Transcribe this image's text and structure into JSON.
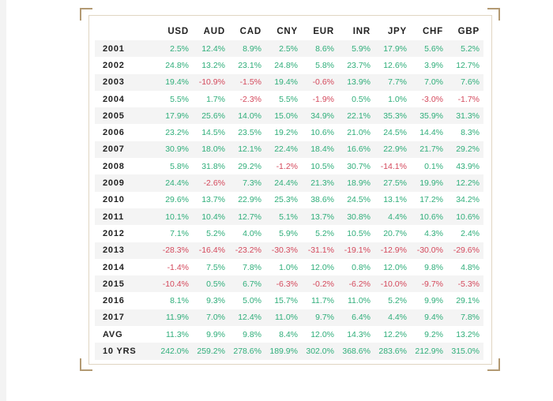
{
  "chart_data": {
    "type": "table",
    "columns": [
      "USD",
      "AUD",
      "CAD",
      "CNY",
      "EUR",
      "INR",
      "JPY",
      "CHF",
      "GBP"
    ],
    "rows": [
      {
        "label": "2001",
        "values": [
          "2.5%",
          "12.4%",
          "8.9%",
          "2.5%",
          "8.6%",
          "5.9%",
          "17.9%",
          "5.6%",
          "5.2%"
        ]
      },
      {
        "label": "2002",
        "values": [
          "24.8%",
          "13.2%",
          "23.1%",
          "24.8%",
          "5.8%",
          "23.7%",
          "12.6%",
          "3.9%",
          "12.7%"
        ]
      },
      {
        "label": "2003",
        "values": [
          "19.4%",
          "-10.9%",
          "-1.5%",
          "19.4%",
          "-0.6%",
          "13.9%",
          "7.7%",
          "7.0%",
          "7.6%"
        ]
      },
      {
        "label": "2004",
        "values": [
          "5.5%",
          "1.7%",
          "-2.3%",
          "5.5%",
          "-1.9%",
          "0.5%",
          "1.0%",
          "-3.0%",
          "-1.7%"
        ]
      },
      {
        "label": "2005",
        "values": [
          "17.9%",
          "25.6%",
          "14.0%",
          "15.0%",
          "34.9%",
          "22.1%",
          "35.3%",
          "35.9%",
          "31.3%"
        ]
      },
      {
        "label": "2006",
        "values": [
          "23.2%",
          "14.5%",
          "23.5%",
          "19.2%",
          "10.6%",
          "21.0%",
          "24.5%",
          "14.4%",
          "8.3%"
        ]
      },
      {
        "label": "2007",
        "values": [
          "30.9%",
          "18.0%",
          "12.1%",
          "22.4%",
          "18.4%",
          "16.6%",
          "22.9%",
          "21.7%",
          "29.2%"
        ]
      },
      {
        "label": "2008",
        "values": [
          "5.8%",
          "31.8%",
          "29.2%",
          "-1.2%",
          "10.5%",
          "30.7%",
          "-14.1%",
          "0.1%",
          "43.9%"
        ]
      },
      {
        "label": "2009",
        "values": [
          "24.4%",
          "-2.6%",
          "7.3%",
          "24.4%",
          "21.3%",
          "18.9%",
          "27.5%",
          "19.9%",
          "12.2%"
        ]
      },
      {
        "label": "2010",
        "values": [
          "29.6%",
          "13.7%",
          "22.9%",
          "25.3%",
          "38.6%",
          "24.5%",
          "13.1%",
          "17.2%",
          "34.2%"
        ]
      },
      {
        "label": "2011",
        "values": [
          "10.1%",
          "10.4%",
          "12.7%",
          "5.1%",
          "13.7%",
          "30.8%",
          "4.4%",
          "10.6%",
          "10.6%"
        ]
      },
      {
        "label": "2012",
        "values": [
          "7.1%",
          "5.2%",
          "4.0%",
          "5.9%",
          "5.2%",
          "10.5%",
          "20.7%",
          "4.3%",
          "2.4%"
        ]
      },
      {
        "label": "2013",
        "values": [
          "-28.3%",
          "-16.4%",
          "-23.2%",
          "-30.3%",
          "-31.1%",
          "-19.1%",
          "-12.9%",
          "-30.0%",
          "-29.6%"
        ]
      },
      {
        "label": "2014",
        "values": [
          "-1.4%",
          "7.5%",
          "7.8%",
          "1.0%",
          "12.0%",
          "0.8%",
          "12.0%",
          "9.8%",
          "4.8%"
        ]
      },
      {
        "label": "2015",
        "values": [
          "-10.4%",
          "0.5%",
          "6.7%",
          "-6.3%",
          "-0.2%",
          "-6.2%",
          "-10.0%",
          "-9.7%",
          "-5.3%"
        ]
      },
      {
        "label": "2016",
        "values": [
          "8.1%",
          "9.3%",
          "5.0%",
          "15.7%",
          "11.7%",
          "11.0%",
          "5.2%",
          "9.9%",
          "29.1%"
        ]
      },
      {
        "label": "2017",
        "values": [
          "11.9%",
          "7.0%",
          "12.4%",
          "11.0%",
          "9.7%",
          "6.4%",
          "4.4%",
          "9.4%",
          "7.8%"
        ]
      },
      {
        "label": "AVG",
        "values": [
          "11.3%",
          "9.9%",
          "9.8%",
          "8.4%",
          "12.0%",
          "14.3%",
          "12.2%",
          "9.2%",
          "13.2%"
        ]
      },
      {
        "label": "10 YRS",
        "values": [
          "242.0%",
          "259.2%",
          "278.6%",
          "189.9%",
          "302.0%",
          "368.6%",
          "283.6%",
          "212.9%",
          "315.0%"
        ]
      }
    ],
    "colors": {
      "positive": "#2fae7a",
      "negative": "#d4495c",
      "frame": "#b39a73"
    }
  }
}
